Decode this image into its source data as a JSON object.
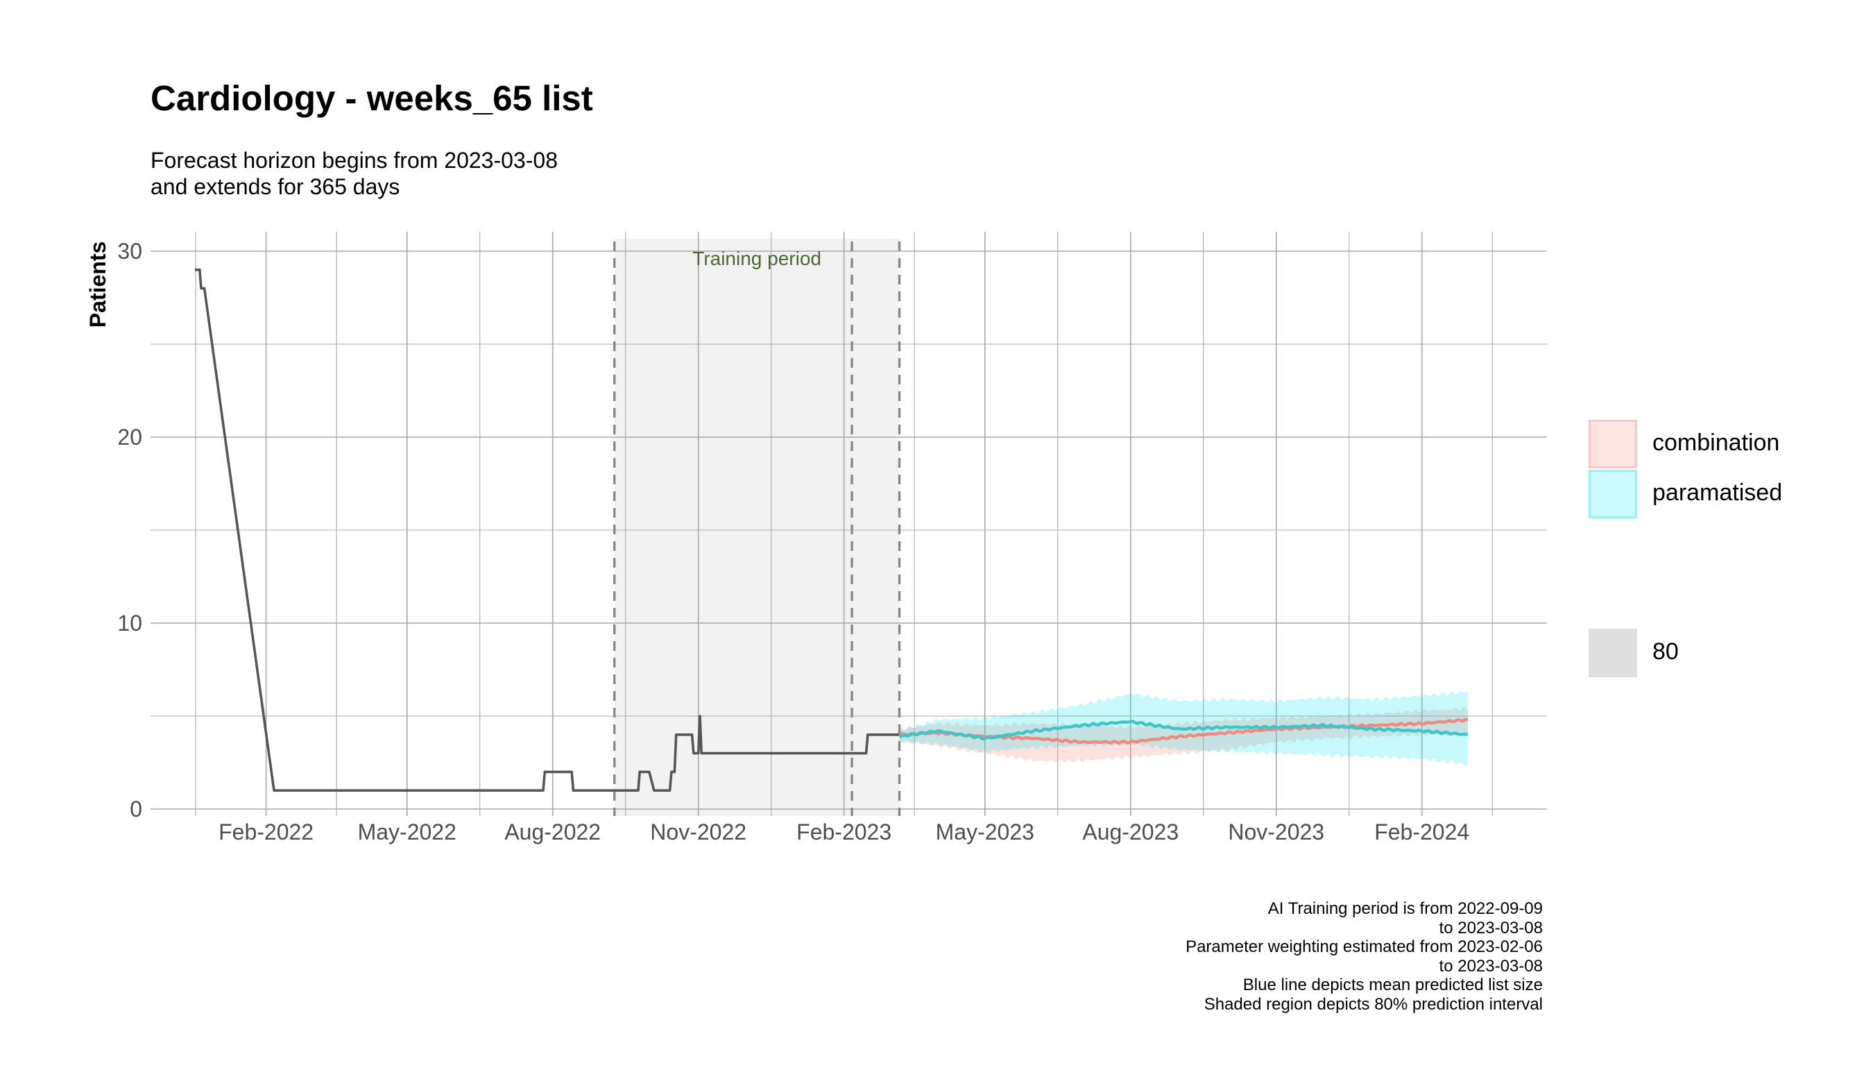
{
  "title": "Cardiology - weeks_65 list",
  "subtitle": [
    "Forecast horizon begins from 2023-03-08",
    "and extends for 365 days"
  ],
  "caption": [
    "AI Training period is from 2022-09-09",
    "to 2023-03-08",
    "Parameter weighting estimated from 2023-02-06",
    "to 2023-03-08",
    "Blue line depicts mean predicted list size",
    "Shaded region depicts 80% prediction interval"
  ],
  "legend": {
    "series": [
      {
        "label": "combination",
        "fill": "#F8766D"
      },
      {
        "label": "paramatised",
        "fill": "#00E5EE"
      }
    ],
    "level": {
      "label": "80",
      "fill": "#BFBFBF"
    }
  },
  "colors": {
    "observed": "#555555",
    "combination_line": "#F08A80",
    "paramatised_line": "#3EC4C9",
    "combination_band": "#F8766D",
    "paramatised_band": "#00E5EE",
    "training_shade": "#F2F2F2",
    "grid": "#A8A8A8",
    "vline": "#888888",
    "annotation": "#4D6633"
  },
  "chart_data": {
    "type": "line",
    "ylabel": "Patients",
    "xlabel": "",
    "ylim": [
      0,
      30
    ],
    "xlim": [
      "2021-11-20",
      "2024-04-20"
    ],
    "y_ticks": [
      0,
      10,
      20,
      30
    ],
    "x_ticks": [
      "2022-02-01",
      "2022-05-01",
      "2022-08-01",
      "2022-11-01",
      "2023-02-01",
      "2023-05-01",
      "2023-08-01",
      "2023-11-01",
      "2024-02-01"
    ],
    "x_tick_labels": [
      "Feb-2022",
      "May-2022",
      "Aug-2022",
      "Nov-2022",
      "Feb-2023",
      "May-2023",
      "Aug-2023",
      "Nov-2023",
      "Feb-2024"
    ],
    "grid": true,
    "legend_position": "right",
    "training_period": {
      "start": "2022-09-09",
      "end": "2023-03-08",
      "label": "Training period"
    },
    "vertical_lines": [
      "2022-09-09",
      "2023-02-06",
      "2023-03-08"
    ],
    "observed": {
      "x": [
        "2021-12-18",
        "2021-12-21",
        "2021-12-22",
        "2021-12-24",
        "2022-02-06",
        "2022-07-26",
        "2022-07-27",
        "2022-08-13",
        "2022-08-14",
        "2022-09-24",
        "2022-09-25",
        "2022-10-01",
        "2022-10-04",
        "2022-10-14",
        "2022-10-15",
        "2022-10-17",
        "2022-10-18",
        "2022-10-20",
        "2022-10-28",
        "2022-10-29",
        "2022-11-01",
        "2022-11-02",
        "2022-11-03",
        "2023-02-15",
        "2023-02-16",
        "2023-03-08"
      ],
      "y": [
        29,
        29,
        28,
        28,
        1,
        1,
        2,
        2,
        1,
        1,
        2,
        2,
        1,
        1,
        2,
        2,
        4,
        4,
        4,
        3,
        3,
        5,
        3,
        3,
        4,
        4
      ]
    },
    "series": [
      {
        "name": "combination",
        "x": [
          "2023-03-08",
          "2023-04-01",
          "2023-05-01",
          "2023-06-01",
          "2023-07-01",
          "2023-08-01",
          "2023-09-01",
          "2023-10-01",
          "2023-11-01",
          "2023-12-01",
          "2024-01-01",
          "2024-02-01",
          "2024-03-01"
        ],
        "mean": [
          4.0,
          4.1,
          3.9,
          3.8,
          3.6,
          3.6,
          3.9,
          4.1,
          4.3,
          4.4,
          4.5,
          4.6,
          4.8
        ],
        "lower": [
          3.7,
          3.4,
          3.0,
          2.6,
          2.6,
          2.8,
          3.0,
          3.2,
          3.6,
          3.8,
          3.9,
          4.0,
          4.1
        ],
        "upper": [
          4.3,
          4.6,
          4.5,
          4.6,
          4.5,
          4.4,
          4.6,
          4.8,
          4.9,
          5.0,
          5.1,
          5.3,
          5.4
        ]
      },
      {
        "name": "paramatised",
        "x": [
          "2023-03-08",
          "2023-04-01",
          "2023-05-01",
          "2023-06-01",
          "2023-07-01",
          "2023-08-01",
          "2023-09-01",
          "2023-10-01",
          "2023-11-01",
          "2023-12-01",
          "2024-01-01",
          "2024-02-01",
          "2024-03-01"
        ],
        "mean": [
          3.9,
          4.2,
          3.8,
          4.2,
          4.5,
          4.7,
          4.3,
          4.4,
          4.4,
          4.5,
          4.3,
          4.2,
          4.0
        ],
        "lower": [
          3.6,
          3.5,
          3.1,
          3.3,
          3.4,
          3.5,
          3.2,
          3.1,
          3.0,
          2.9,
          2.8,
          2.7,
          2.4
        ],
        "upper": [
          4.2,
          4.8,
          4.9,
          5.2,
          5.6,
          6.2,
          5.8,
          5.9,
          5.8,
          6.0,
          5.9,
          6.1,
          6.3
        ]
      }
    ]
  }
}
